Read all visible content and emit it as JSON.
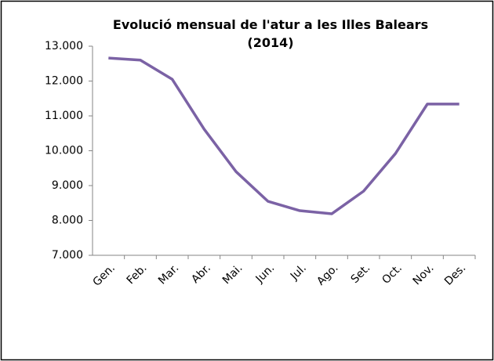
{
  "chart_data": {
    "type": "line",
    "title": "Evolució mensual de l'atur a les Illes Balears (2014)",
    "categories": [
      "Gen.",
      "Feb.",
      "Mar.",
      "Abr.",
      "Mai.",
      "Jun.",
      "Jul.",
      "Ago.",
      "Set.",
      "Oct.",
      "Nov.",
      "Des."
    ],
    "series": [
      {
        "color": "#7b62a5",
        "values": [
          12660,
          12600,
          12050,
          10620,
          9400,
          8550,
          8280,
          8190,
          8840,
          9920,
          11340,
          11340
        ]
      }
    ],
    "ylim": [
      7000,
      13000
    ],
    "yticks": [
      {
        "value": 7000,
        "label": "7.000"
      },
      {
        "value": 8000,
        "label": "8.000"
      },
      {
        "value": 9000,
        "label": "9.000"
      },
      {
        "value": 10000,
        "label": "10.000"
      },
      {
        "value": 11000,
        "label": "11.000"
      },
      {
        "value": 12000,
        "label": "12.000"
      },
      {
        "value": 13000,
        "label": "13.000"
      }
    ],
    "grid": false
  }
}
